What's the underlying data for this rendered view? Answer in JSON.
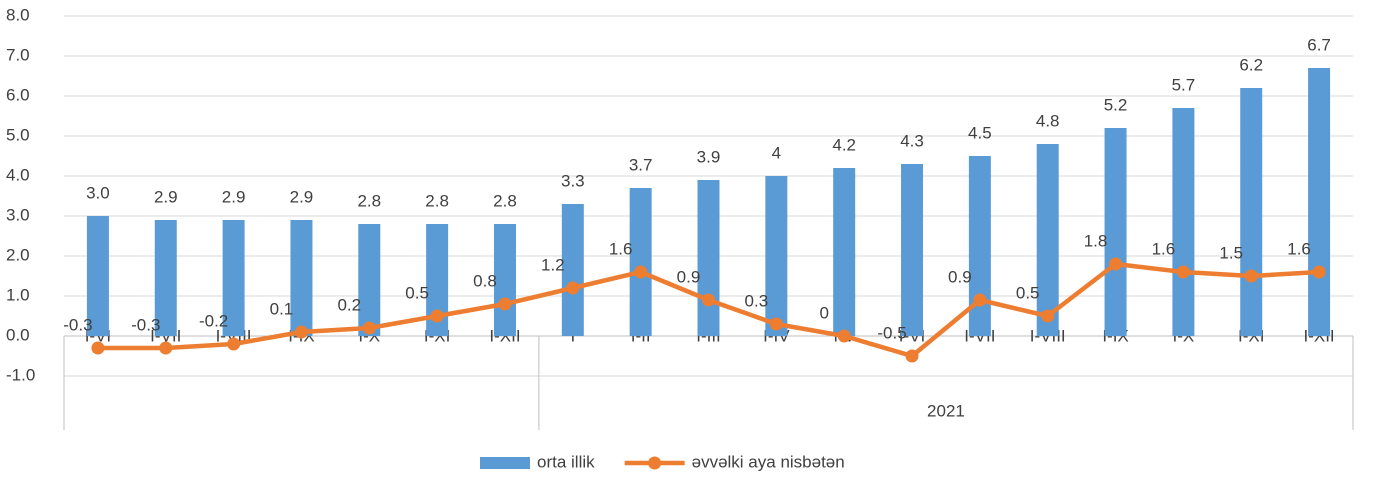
{
  "chart_data": {
    "type": "bar-line",
    "groups": [
      {
        "name": null,
        "categories": [
          "I-VI",
          "I-VII",
          "I-VIII",
          "I-IX",
          "I-X",
          "I-XI",
          "I-XII"
        ]
      },
      {
        "name": "2021",
        "categories": [
          "I",
          "I-II",
          "I-III",
          "I-IV",
          "I-V",
          "I-VI",
          "I-VII",
          "I-VIII",
          "I-IX",
          "I-X",
          "I-XI",
          "I-XII"
        ]
      }
    ],
    "series": [
      {
        "name": "orta illik",
        "type": "bar",
        "color": "#5b9bd5",
        "values": [
          3.0,
          2.9,
          2.9,
          2.9,
          2.8,
          2.8,
          2.8,
          3.3,
          3.7,
          3.9,
          4,
          4.2,
          4.3,
          4.5,
          4.8,
          5.2,
          5.7,
          6.2,
          6.7
        ],
        "value_labels": [
          "3.0",
          "2.9",
          "2.9",
          "2.9",
          "2.8",
          "2.8",
          "2.8",
          "3.3",
          "3.7",
          "3.9",
          "4",
          "4.2",
          "4.3",
          "4.5",
          "4.8",
          "5.2",
          "5.7",
          "6.2",
          "6.7"
        ]
      },
      {
        "name": "əvvəlki aya nisbətən",
        "type": "line",
        "color": "#ed7d31",
        "values": [
          -0.3,
          -0.3,
          -0.2,
          0.1,
          0.2,
          0.5,
          0.8,
          1.2,
          1.6,
          0.9,
          0.3,
          0,
          -0.5,
          0.9,
          0.5,
          1.8,
          1.6,
          1.5,
          1.6
        ]
      }
    ],
    "ylim": [
      -1,
      8
    ],
    "yticks": [
      {
        "value": -1,
        "label": "-1.0"
      },
      {
        "value": 0,
        "label": "0.0"
      },
      {
        "value": 1,
        "label": "1.0"
      },
      {
        "value": 2,
        "label": "2.0"
      },
      {
        "value": 3,
        "label": "3.0"
      },
      {
        "value": 4,
        "label": "4.0"
      },
      {
        "value": 5,
        "label": "5.0"
      },
      {
        "value": 6,
        "label": "6.0"
      },
      {
        "value": 7,
        "label": "7.0"
      },
      {
        "value": 8,
        "label": "8.0"
      }
    ],
    "grid": true,
    "legend": "bottom"
  }
}
